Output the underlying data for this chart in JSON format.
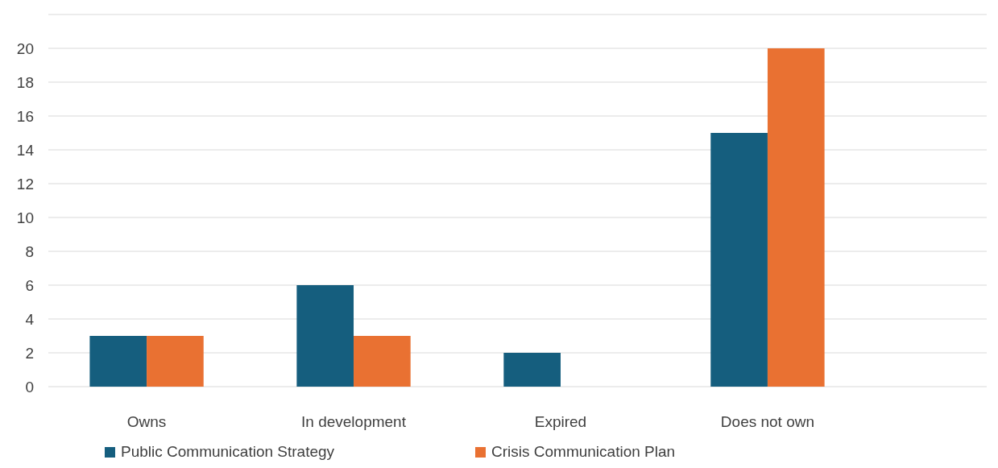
{
  "chart_data": {
    "type": "bar",
    "categories": [
      "Owns",
      "In development",
      "Expired",
      "Does not own"
    ],
    "series": [
      {
        "name": "Public Communication Strategy",
        "color": "#155e7e",
        "values": [
          3,
          6,
          2,
          15
        ]
      },
      {
        "name": "Crisis Communication Plan",
        "color": "#e97132",
        "values": [
          3,
          3,
          0,
          20
        ]
      }
    ],
    "ylim": [
      0,
      22
    ],
    "yticks": [
      0,
      2,
      4,
      6,
      8,
      10,
      12,
      14,
      16,
      18,
      20,
      {
        "value": 22,
        "label": null
      }
    ],
    "grid": "y",
    "legend": "bottom"
  }
}
